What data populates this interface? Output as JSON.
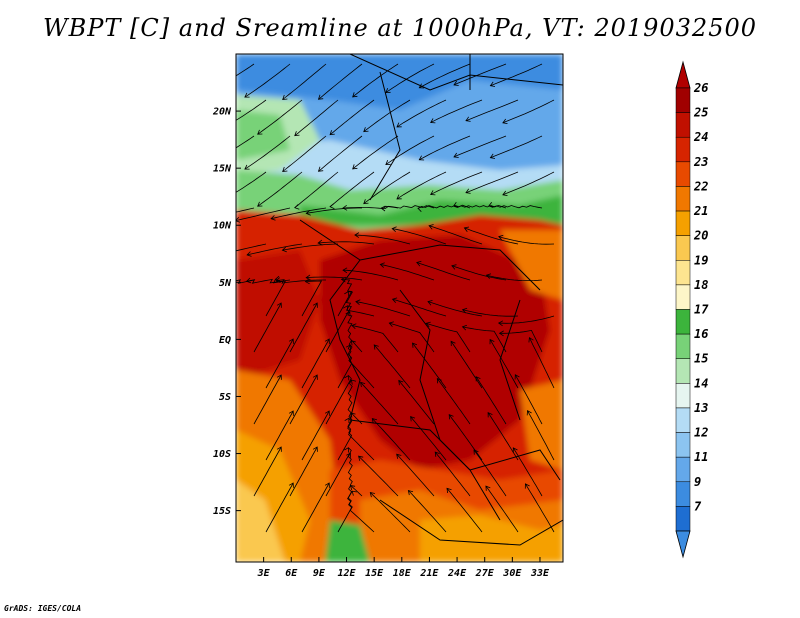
{
  "title": "WBPT [C] and Sreamline at 1000hPa, VT: 2019032500",
  "credit": "GrADS: IGES/COLA",
  "map": {
    "lon_range": [
      0,
      35.5
    ],
    "lat_range": [
      -19.5,
      25
    ],
    "lat_ticks": [
      {
        "value": 20,
        "label": "20N"
      },
      {
        "value": 15,
        "label": "15N"
      },
      {
        "value": 10,
        "label": "10N"
      },
      {
        "value": 5,
        "label": "5N"
      },
      {
        "value": 0,
        "label": "EQ"
      },
      {
        "value": -5,
        "label": "5S"
      },
      {
        "value": -10,
        "label": "10S"
      },
      {
        "value": -15,
        "label": "15S"
      }
    ],
    "lon_ticks": [
      {
        "value": 3,
        "label": "3E"
      },
      {
        "value": 6,
        "label": "6E"
      },
      {
        "value": 9,
        "label": "9E"
      },
      {
        "value": 12,
        "label": "12E"
      },
      {
        "value": 15,
        "label": "15E"
      },
      {
        "value": 18,
        "label": "18E"
      },
      {
        "value": 21,
        "label": "21E"
      },
      {
        "value": 24,
        "label": "24E"
      },
      {
        "value": 27,
        "label": "27E"
      },
      {
        "value": 30,
        "label": "30E"
      },
      {
        "value": 33,
        "label": "33E"
      }
    ]
  },
  "colorbar": {
    "levels": [
      {
        "label": "26",
        "color": "#a00000"
      },
      {
        "label": "25",
        "color": "#c01000"
      },
      {
        "label": "24",
        "color": "#d62400"
      },
      {
        "label": "23",
        "color": "#e84a00"
      },
      {
        "label": "22",
        "color": "#f07800"
      },
      {
        "label": "21",
        "color": "#f5a000"
      },
      {
        "label": "20",
        "color": "#fac850"
      },
      {
        "label": "19",
        "color": "#fde590"
      },
      {
        "label": "18",
        "color": "#fdf6c8"
      },
      {
        "label": "17",
        "color": "#3cb43c"
      },
      {
        "label": "16",
        "color": "#78d278"
      },
      {
        "label": "15",
        "color": "#b4e6b4"
      },
      {
        "label": "14",
        "color": "#e6f5f0"
      },
      {
        "label": "13",
        "color": "#b4dcf5"
      },
      {
        "label": "12",
        "color": "#8cc4f0"
      },
      {
        "label": "11",
        "color": "#64a8ea"
      },
      {
        "label": "9",
        "color": "#3c8ce0"
      },
      {
        "label": "7",
        "color": "#1e6ed2"
      }
    ],
    "under_color": "#3c8ce0",
    "over_color": "#b00000"
  }
}
